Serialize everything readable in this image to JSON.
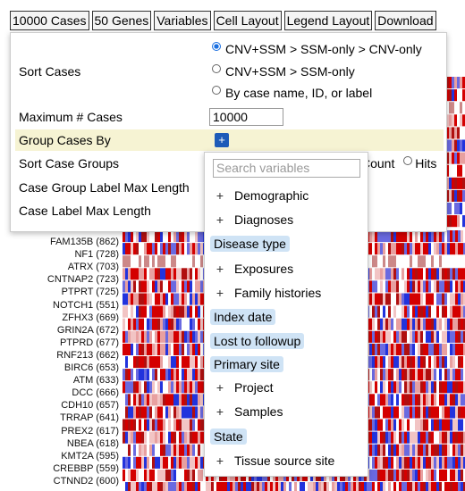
{
  "toolbar": {
    "buttons": [
      "10000 Cases",
      "50 Genes",
      "Variables",
      "Cell Layout",
      "Legend Layout",
      "Download"
    ]
  },
  "settings": {
    "sort_cases_label": "Sort Cases",
    "sort_options": [
      {
        "label": "CNV+SSM > SSM-only > CNV-only",
        "checked": true
      },
      {
        "label": "CNV+SSM > SSM-only",
        "checked": false
      },
      {
        "label": "By case name, ID, or label",
        "checked": false
      }
    ],
    "max_cases_label": "Maximum # Cases",
    "max_cases_value": "10000",
    "group_by_label": "Group Cases By",
    "group_by_add": "+",
    "sort_groups_label": "Sort Case Groups",
    "sort_groups_options": [
      "Count",
      "Hits"
    ],
    "group_label_max_label": "Case Group Label Max Length",
    "case_label_max_label": "Case Label Max Length"
  },
  "variables_menu": {
    "search_placeholder": "Search variables",
    "items": [
      {
        "label": "Demographic",
        "expandable": true
      },
      {
        "label": "Diagnoses",
        "expandable": true
      },
      {
        "label": "Disease type",
        "expandable": false
      },
      {
        "label": "Exposures",
        "expandable": true
      },
      {
        "label": "Family histories",
        "expandable": true
      },
      {
        "label": "Index date",
        "expandable": false
      },
      {
        "label": "Lost to followup",
        "expandable": false
      },
      {
        "label": "Primary site",
        "expandable": false
      },
      {
        "label": "Project",
        "expandable": true
      },
      {
        "label": "Samples",
        "expandable": true
      },
      {
        "label": "State",
        "expandable": false
      },
      {
        "label": "Tissue source site",
        "expandable": true
      }
    ]
  },
  "genes": [
    "FAM135B (862)",
    "NF1 (728)",
    "ATRX (703)",
    "CNTNAP2 (723)",
    "PTPRT (725)",
    "NOTCH1 (551)",
    "ZFHX3 (669)",
    "GRIN2A (672)",
    "PTPRD (677)",
    "RNF213 (662)",
    "BIRC6 (653)",
    "ATM (633)",
    "DCC (666)",
    "CDH10 (657)",
    "TRRAP (641)",
    "PREX2 (617)",
    "NBEA (618)",
    "KMT2A (595)",
    "CREBBP (559)",
    "CTNND2 (600)"
  ],
  "colors": {
    "cnv_gain": "#d40000",
    "cnv_loss": "#2233dd",
    "ssm": "#e8a0a0",
    "highlight_row": "#f6f3d3",
    "leaf_chip": "#cfe3f5",
    "plus_button": "#1e5bb8"
  }
}
